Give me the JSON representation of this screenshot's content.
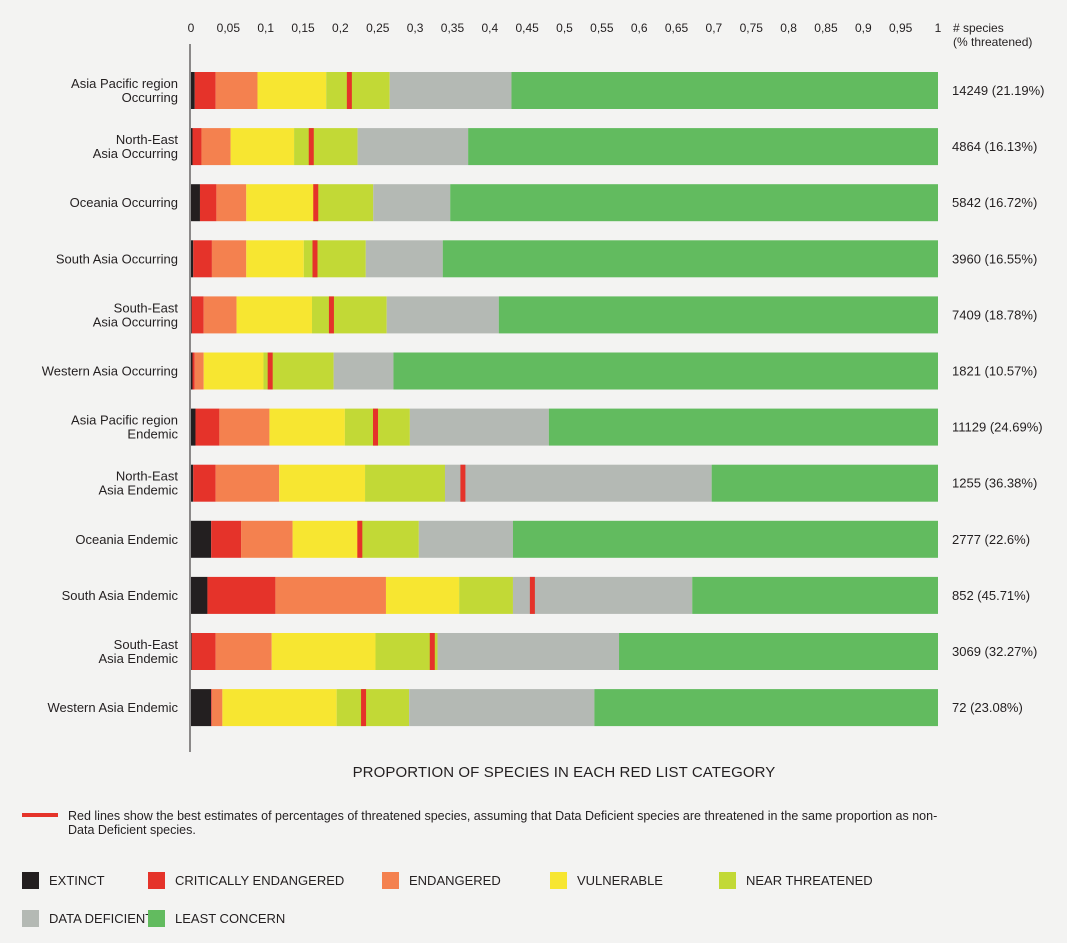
{
  "chart_data": {
    "type": "bar",
    "orientation": "horizontal",
    "stacked": true,
    "x_ticks": [
      "0",
      "0,05",
      "0,1",
      "0,15",
      "0,2",
      "0,25",
      "0,3",
      "0,35",
      "0,4",
      "0,45",
      "0,5",
      "0,55",
      "0,6",
      "0,65",
      "0,7",
      "0,75",
      "0,8",
      "0,85",
      "0,9",
      "0,95",
      "1"
    ],
    "xlim": [
      0,
      1
    ],
    "xlabel": "PROPORTION OF SPECIES IN EACH RED LIST CATEGORY",
    "right_header": [
      "# species",
      "(% threatened)"
    ],
    "categories": [
      [
        "Asia Pacific region",
        "Occurring"
      ],
      [
        "North-East",
        "Asia Occurring"
      ],
      [
        "Oceania Occurring"
      ],
      [
        "South Asia Occurring"
      ],
      [
        "South-East",
        "Asia Occurring"
      ],
      [
        "Western Asia Occurring"
      ],
      [
        "Asia Pacific region",
        "Endemic"
      ],
      [
        "North-East",
        "Asia Endemic"
      ],
      [
        "Oceania Endemic"
      ],
      [
        "South Asia Endemic"
      ],
      [
        "South-East",
        "Asia Endemic"
      ],
      [
        "Western Asia Endemic"
      ]
    ],
    "counts": [
      "14249 (21.19%)",
      "4864 (16.13%)",
      "5842 (16.72%)",
      "3960 (16.55%)",
      "7409 (18.78%)",
      "1821 (10.57%)",
      "11129 (24.69%)",
      "1255 (36.38%)",
      "2777 (22.6%)",
      "852 (45.71%)",
      "3069 (32.27%)",
      "72 (23.08%)"
    ],
    "series": [
      {
        "name": "EXTINCT",
        "color": "#231f20",
        "values": [
          0.005,
          0.002,
          0.012,
          0.003,
          0.001,
          0.002,
          0.006,
          0.003,
          0.027,
          0.022,
          0.001,
          0.027
        ]
      },
      {
        "name": "CRITICALLY ENDANGERED",
        "color": "#e5332a",
        "values": [
          0.028,
          0.012,
          0.022,
          0.025,
          0.016,
          0.003,
          0.032,
          0.03,
          0.04,
          0.091,
          0.032,
          0.001
        ]
      },
      {
        "name": "ENDANGERED",
        "color": "#f4814f",
        "values": [
          0.056,
          0.039,
          0.04,
          0.046,
          0.044,
          0.012,
          0.067,
          0.085,
          0.069,
          0.148,
          0.075,
          0.014
        ]
      },
      {
        "name": "VULNERABLE",
        "color": "#f7e631",
        "values": [
          0.092,
          0.085,
          0.09,
          0.077,
          0.101,
          0.08,
          0.101,
          0.115,
          0.088,
          0.098,
          0.139,
          0.153
        ]
      },
      {
        "name": "NEAR THREATENED",
        "color": "#c2d936",
        "values": [
          0.085,
          0.085,
          0.08,
          0.083,
          0.1,
          0.094,
          0.087,
          0.107,
          0.081,
          0.072,
          0.083,
          0.097
        ]
      },
      {
        "name": "DATA DEFICIENT",
        "color": "#b4b9b4",
        "values": [
          0.163,
          0.148,
          0.103,
          0.103,
          0.15,
          0.08,
          0.186,
          0.357,
          0.126,
          0.24,
          0.243,
          0.248
        ]
      },
      {
        "name": "LEAST CONCERN",
        "color": "#62bb5f",
        "values": [
          0.571,
          0.629,
          0.653,
          0.663,
          0.588,
          0.729,
          0.521,
          0.303,
          0.569,
          0.329,
          0.427,
          0.46
        ]
      }
    ],
    "threatened_estimates": [
      0.212,
      0.161,
      0.167,
      0.166,
      0.188,
      0.106,
      0.247,
      0.364,
      0.226,
      0.457,
      0.323,
      0.231
    ],
    "note": "Red lines show the best estimates of percentages of threatened species, assuming that Data Deficient species are threatened in the same proportion as non-Data Deficient species.",
    "note_line_color": "#e5332a",
    "legend_rows": [
      [
        "EXTINCT",
        "CRITICALLY ENDANGERED",
        "ENDANGERED",
        "VULNERABLE",
        "NEAR THREATENED"
      ],
      [
        "DATA DEFICIENT",
        "LEAST CONCERN"
      ]
    ],
    "grid": false,
    "legend_position": "bottom"
  }
}
